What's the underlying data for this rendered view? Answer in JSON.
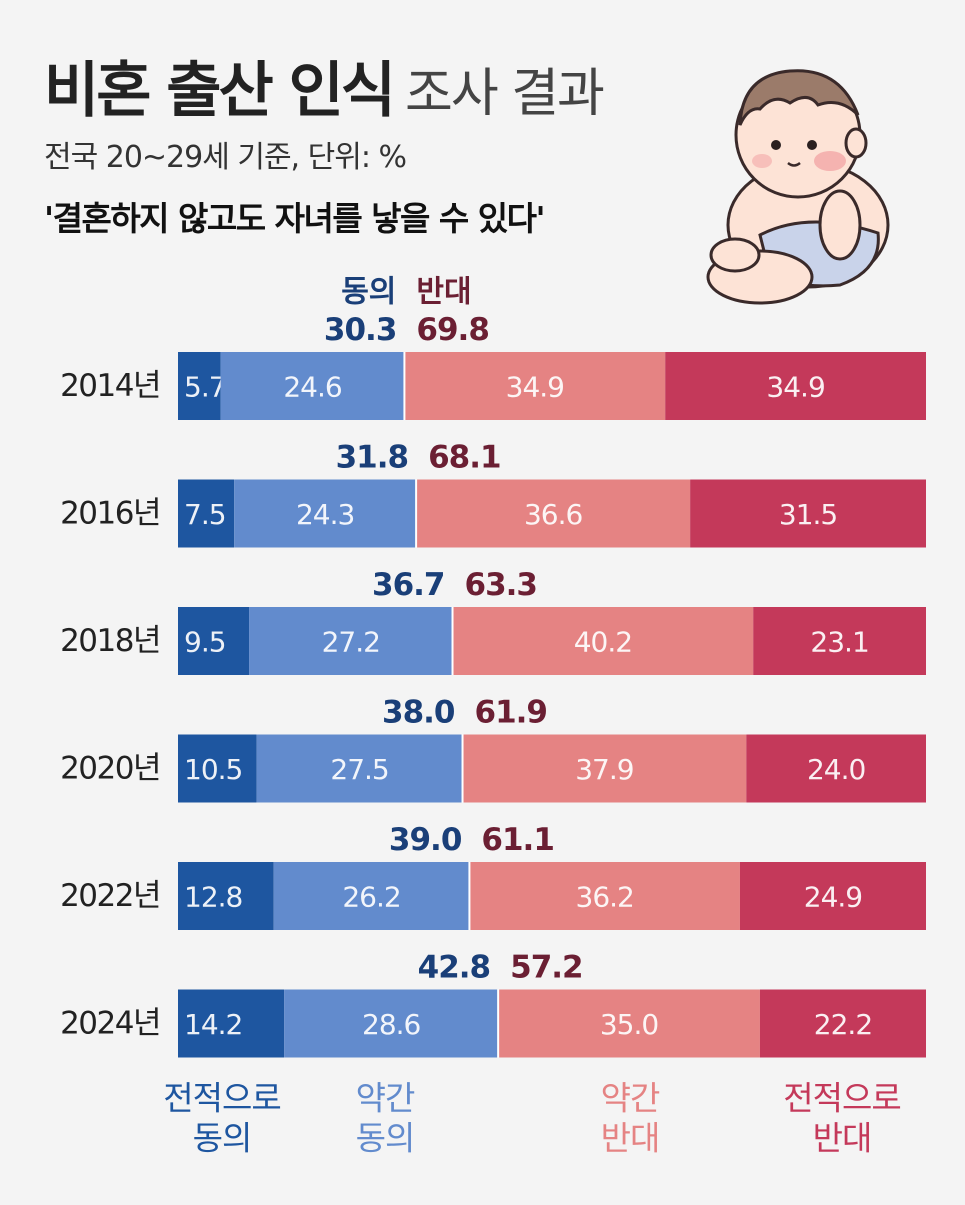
{
  "header": {
    "title_bold": "비혼 출산 인식",
    "title_light": "조사 결과",
    "subtitle": "전국 20~29세 기준, 단위: %",
    "question": "'결혼하지 않고도 자녀를 낳을 수 있다'"
  },
  "chart_data": {
    "type": "bar",
    "stacked": true,
    "orientation": "horizontal",
    "categories": [
      "2014년",
      "2016년",
      "2018년",
      "2020년",
      "2022년",
      "2024년"
    ],
    "series": [
      {
        "name": "전적으로 동의",
        "label_lines": [
          "전적으로",
          "동의"
        ],
        "color": "#1e56a0",
        "values": [
          5.7,
          7.5,
          9.5,
          10.5,
          12.8,
          14.2
        ]
      },
      {
        "name": "약간 동의",
        "label_lines": [
          "약간",
          "동의"
        ],
        "color": "#628bcd",
        "values": [
          24.6,
          24.3,
          27.2,
          27.5,
          26.2,
          28.6
        ]
      },
      {
        "name": "약간 반대",
        "label_lines": [
          "약간",
          "반대"
        ],
        "color": "#e58383",
        "values": [
          34.9,
          36.6,
          40.2,
          37.9,
          36.2,
          35.0
        ]
      },
      {
        "name": "전적으로 반대",
        "label_lines": [
          "전적으로",
          "반대"
        ],
        "color": "#c4395a",
        "values": [
          34.9,
          31.5,
          23.1,
          24.0,
          24.9,
          22.2
        ]
      }
    ],
    "totals": {
      "agree_label": "동의",
      "disagree_label": "반대",
      "agree": [
        "30.3",
        "31.8",
        "36.7",
        "38.0",
        "39.0",
        "42.8"
      ],
      "disagree": [
        "69.8",
        "68.1",
        "63.3",
        "61.9",
        "61.1",
        "57.2"
      ],
      "agree_color": "#1a3f78",
      "disagree_color": "#6b1f33"
    },
    "segment_label_color": "#ffffff",
    "legend_colors": [
      "#1e56a0",
      "#628bcd",
      "#e58383",
      "#c4395a"
    ]
  }
}
